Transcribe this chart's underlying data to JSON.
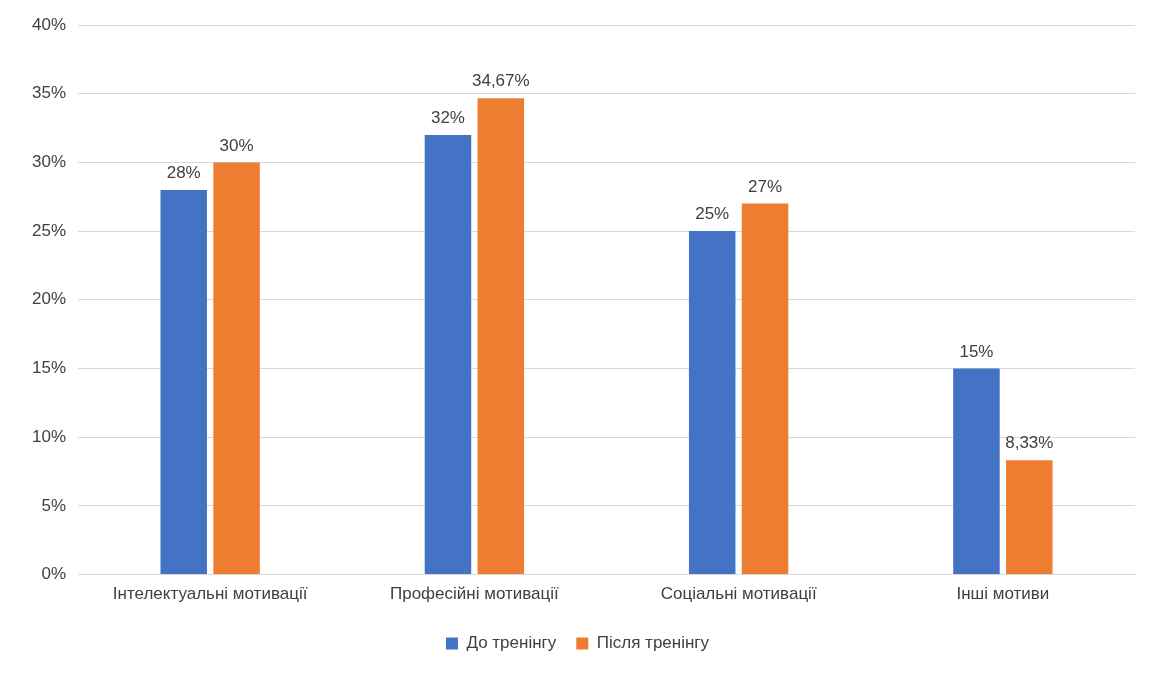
{
  "chart_data": {
    "type": "bar",
    "categories": [
      "Інтелектуальні мотивації",
      "Професійні мотивації",
      "Соціальні мотивації",
      "Інші мотиви"
    ],
    "series": [
      {
        "name": "До тренінгу",
        "color": "#4472c4",
        "values": [
          28,
          32,
          25,
          15
        ],
        "value_labels": [
          "28%",
          "32%",
          "25%",
          "15%"
        ]
      },
      {
        "name": "Після тренінгу",
        "color": "#ed7d31",
        "values": [
          30,
          34.67,
          27,
          8.33
        ],
        "value_labels": [
          "30%",
          "34,67%",
          "27%",
          "8,33%"
        ]
      }
    ],
    "ylim": [
      0,
      40
    ],
    "yticks": [
      {
        "value": 0,
        "label": "0%"
      },
      {
        "value": 5,
        "label": "5%"
      },
      {
        "value": 10,
        "label": "10%"
      },
      {
        "value": 15,
        "label": "15%"
      },
      {
        "value": 20,
        "label": "20%"
      },
      {
        "value": 25,
        "label": "25%"
      },
      {
        "value": 30,
        "label": "30%"
      },
      {
        "value": 35,
        "label": "35%"
      },
      {
        "value": 40,
        "label": "40%"
      }
    ],
    "grid": "y",
    "legend": "bottom"
  }
}
